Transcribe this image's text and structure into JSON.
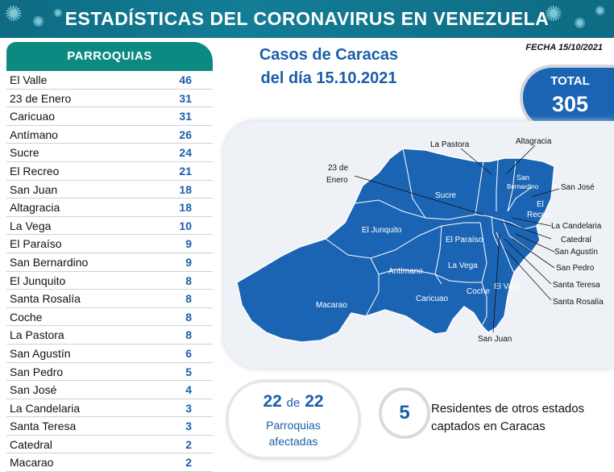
{
  "header": {
    "title": "ESTADÍSTICAS DEL CORONAVIRUS EN VENEZUELA"
  },
  "fecha": "FECHA 15/10/2021",
  "subtitle": {
    "line1": "Casos de Caracas",
    "line2": "del día 15.10.2021"
  },
  "total": {
    "label": "TOTAL",
    "value": "305"
  },
  "parroquias": {
    "header": "PARROQUIAS",
    "rows": [
      {
        "name": "El Valle",
        "count": "46"
      },
      {
        "name": "23 de Enero",
        "count": "31"
      },
      {
        "name": "Caricuao",
        "count": "31"
      },
      {
        "name": "Antímano",
        "count": "26"
      },
      {
        "name": "Sucre",
        "count": "24"
      },
      {
        "name": "El Recreo",
        "count": "21"
      },
      {
        "name": "San Juan",
        "count": "18"
      },
      {
        "name": "Altagracia",
        "count": "18"
      },
      {
        "name": "La Vega",
        "count": "10"
      },
      {
        "name": "El Paraíso",
        "count": "9"
      },
      {
        "name": "San Bernardino",
        "count": "9"
      },
      {
        "name": "El Junquito",
        "count": "8"
      },
      {
        "name": "Santa Rosalía",
        "count": "8"
      },
      {
        "name": "Coche",
        "count": "8"
      },
      {
        "name": "La Pastora",
        "count": "8"
      },
      {
        "name": "San Agustín",
        "count": "6"
      },
      {
        "name": "San Pedro",
        "count": "5"
      },
      {
        "name": "San José",
        "count": "4"
      },
      {
        "name": "La Candelaria",
        "count": "3"
      },
      {
        "name": "Santa Teresa",
        "count": "3"
      },
      {
        "name": "Catedral",
        "count": "2"
      },
      {
        "name": "Macarao",
        "count": "2"
      }
    ]
  },
  "map": {
    "inner_labels": {
      "sucre": "Sucre",
      "el_junquito": "El Junquito",
      "el_paraiso": "El Paraíso",
      "la_vega": "La Vega",
      "antimano": "Antímano",
      "caricuao": "Caricuao",
      "macarao": "Macarao",
      "coche": "Coche",
      "el_valle": "El Valle",
      "san_bernardino_1": "San",
      "san_bernardino_2": "Bernardino",
      "el_recreo_1": "El",
      "el_recreo_2": "Recreo"
    },
    "outer_labels": {
      "la_pastora": "La Pastora",
      "altagracia": "Altagracia",
      "veintitres_1": "23 de",
      "veintitres_2": "Enero",
      "san_jose": "San José",
      "la_candelaria": "La Candelaria",
      "catedral": "Catedral",
      "san_agustin": "San Agustín",
      "san_pedro": "San Pedro",
      "santa_teresa": "Santa Teresa",
      "santa_rosalia": "Santa Rosalía",
      "san_juan": "San Juan"
    },
    "colors": {
      "fill": "#1b64b4",
      "border": "#ffffff"
    }
  },
  "affected": {
    "count": "22",
    "de": "de",
    "total": "22",
    "line2": "Parroquias",
    "line3": "afectadas"
  },
  "residents": {
    "count": "5",
    "line1": "Residentes de otros estados",
    "line2": "captados en Caracas"
  }
}
